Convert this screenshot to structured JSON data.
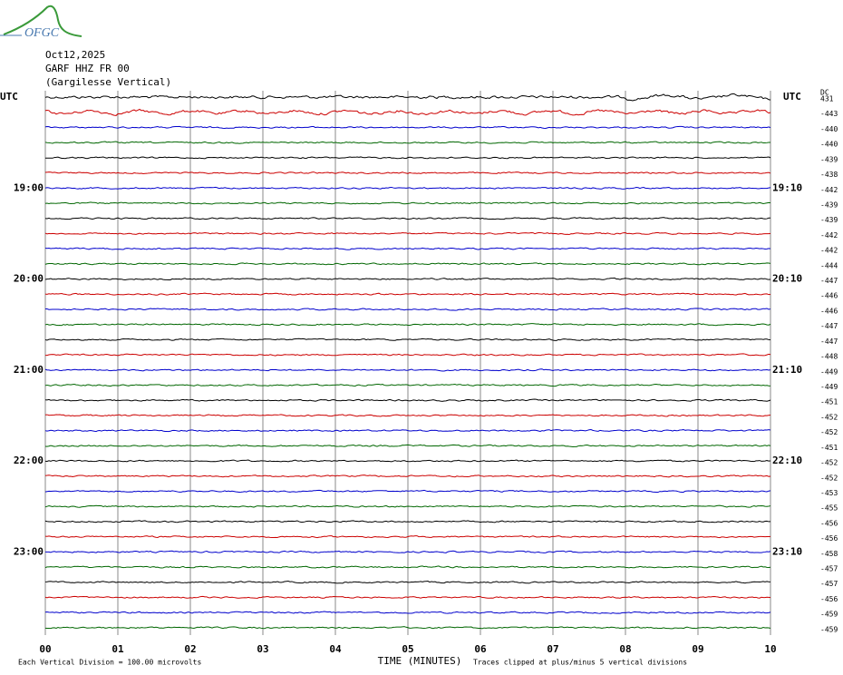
{
  "logo": "OFGC",
  "header": {
    "date": "Oct12,2025",
    "station": "GARF HHZ FR 00",
    "name": "(Gargilesse Vertical)"
  },
  "left_labels": {
    "0": "UTC",
    "6": "19:00",
    "12": "20:00",
    "18": "21:00",
    "24": "22:00",
    "30": "23:00"
  },
  "right_labels": {
    "0": "UTC",
    "6": "19:10",
    "12": "20:10",
    "18": "21:10",
    "24": "22:10",
    "30": "23:10"
  },
  "dc_title": "DC",
  "dc_offsets": [
    "431",
    "-443",
    "-440",
    "-440",
    "-439",
    "-438",
    "-442",
    "-439",
    "-439",
    "-442",
    "-442",
    "-444",
    "-447",
    "-446",
    "-446",
    "-447",
    "-447",
    "-448",
    "-449",
    "-449",
    "-451",
    "-452",
    "-452",
    "-451",
    "-452",
    "-452",
    "-453",
    "-455",
    "-456",
    "-456",
    "-458",
    "-457",
    "-457",
    "-456",
    "-459",
    "-459"
  ],
  "x_ticks": [
    "00",
    "01",
    "02",
    "03",
    "04",
    "05",
    "06",
    "07",
    "08",
    "09",
    "10"
  ],
  "x_title": "TIME (MINUTES)",
  "footer": {
    "scale_note": "Each Vertical Division =  100.00 microvolts",
    "clip_note": "Traces clipped at plus/minus 5 vertical divisions"
  }
}
